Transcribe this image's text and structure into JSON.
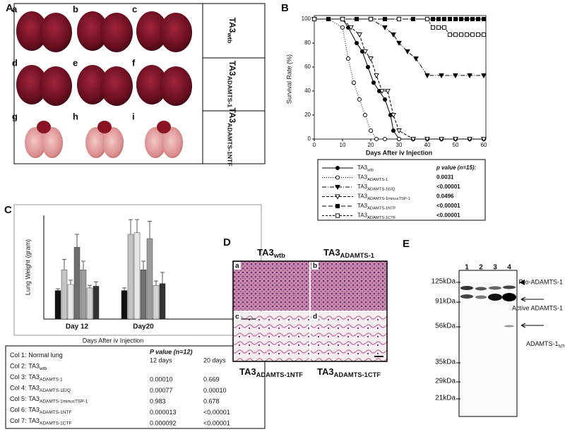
{
  "panels": {
    "a": "A",
    "b": "B",
    "c": "C",
    "d": "D",
    "e": "E"
  },
  "panel_a": {
    "images": [
      "a",
      "b",
      "c",
      "d",
      "e",
      "f",
      "g",
      "h",
      "i"
    ],
    "rows": [
      {
        "base": "TA3",
        "sub": "wtb"
      },
      {
        "base": "TA3",
        "sub": "ADAMTS-1"
      },
      {
        "base": "TA3",
        "sub": "ADAMTS-1NTF"
      }
    ]
  },
  "chart_data": [
    {
      "type": "line",
      "xlabel": "Days After iv Injection",
      "ylabel": "Survival Rate (%)",
      "xlim": [
        0,
        60
      ],
      "xticks": [
        0,
        10,
        20,
        30,
        40,
        50,
        60
      ],
      "ylim": [
        0,
        100
      ],
      "yticks": [
        0,
        20,
        40,
        60,
        80,
        100
      ],
      "legend_header": "p value (n=15):",
      "series": [
        {
          "name": {
            "base": "TA3",
            "sub": "wtb"
          },
          "color": "#000",
          "marker": "circle",
          "fill": true,
          "dash": "none",
          "x": [
            0,
            10,
            12,
            15,
            17,
            19,
            21,
            23,
            25,
            27,
            28,
            30,
            35,
            40,
            45,
            50,
            55,
            60
          ],
          "values": [
            100,
            100,
            93,
            80,
            73,
            60,
            47,
            40,
            33,
            20,
            7,
            0,
            0,
            0,
            0,
            0,
            0,
            0
          ]
        },
        {
          "name": {
            "base": "TA3",
            "sub": "ADAMTS-1"
          },
          "p_value": "0.0031",
          "color": "#000",
          "marker": "circle",
          "fill": false,
          "dash": "1,2",
          "x": [
            0,
            5,
            10,
            12,
            14,
            16,
            18,
            20,
            22,
            25,
            30,
            35,
            40,
            45,
            50,
            55,
            60
          ],
          "values": [
            100,
            100,
            93,
            67,
            47,
            33,
            20,
            7,
            0,
            0,
            0,
            0,
            0,
            0,
            0,
            0,
            0
          ]
        },
        {
          "name": {
            "base": "TA3",
            "sub": "ADAMTS-1E/Q"
          },
          "p_value": "<0.00001",
          "color": "#000",
          "marker": "triangle",
          "fill": true,
          "dash": "6,2,1,2",
          "x": [
            0,
            10,
            20,
            25,
            28,
            30,
            33,
            36,
            40,
            45,
            50,
            55,
            60
          ],
          "values": [
            100,
            100,
            100,
            93,
            87,
            80,
            73,
            67,
            53,
            53,
            53,
            53,
            53
          ]
        },
        {
          "name": {
            "base": "TA3",
            "sub": "ADAMTS-1minusTSP-1"
          },
          "p_value": "0.0496",
          "color": "#000",
          "marker": "triangle",
          "fill": false,
          "dash": "4,2",
          "x": [
            0,
            10,
            13,
            16,
            18,
            20,
            22,
            24,
            26,
            28,
            30,
            35,
            40,
            45,
            50,
            55,
            60
          ],
          "values": [
            100,
            100,
            93,
            87,
            73,
            67,
            53,
            40,
            40,
            20,
            7,
            0,
            0,
            0,
            0,
            0,
            0
          ]
        },
        {
          "name": {
            "base": "TA3",
            "sub": "ADAMTS-1NTF"
          },
          "p_value": "<0.00001",
          "color": "#000",
          "marker": "square",
          "fill": true,
          "dash": "6,3",
          "x": [
            0,
            5,
            10,
            15,
            20,
            25,
            30,
            35,
            40,
            42,
            44,
            46,
            48,
            50,
            52,
            54,
            56,
            58,
            60
          ],
          "values": [
            100,
            100,
            100,
            100,
            100,
            100,
            100,
            100,
            100,
            100,
            100,
            100,
            100,
            100,
            100,
            100,
            100,
            100,
            100
          ]
        },
        {
          "name": {
            "base": "TA3",
            "sub": "ADAMTS-1CTF"
          },
          "p_value": "<0.00001",
          "color": "#000",
          "marker": "square",
          "fill": false,
          "dash": "3,2",
          "x": [
            0,
            10,
            20,
            30,
            40,
            42,
            44,
            46,
            48,
            50,
            52,
            54,
            56,
            58,
            60
          ],
          "values": [
            100,
            100,
            100,
            100,
            100,
            93,
            93,
            93,
            87,
            87,
            87,
            87,
            87,
            87,
            87
          ]
        }
      ]
    },
    {
      "type": "bar",
      "ylabel": "Lung Weight (gram)",
      "xlabel": "Days After iv Injection",
      "categories": [
        "Day 12",
        "Day20"
      ],
      "ylim": [
        0,
        1.2
      ],
      "legend_header": "P value (n=12)",
      "legend_columns": [
        "12 days",
        "20 days"
      ],
      "series": [
        {
          "name": {
            "col": "Col 1:",
            "base": "Normal lung"
          },
          "color": "#111111",
          "values": [
            0.33,
            0.33
          ],
          "errors": [
            0.02,
            0.03
          ]
        },
        {
          "name": {
            "col": "Col 2:",
            "base": "TA3",
            "sub": "wtb"
          },
          "color": "#c4c4c4",
          "values": [
            0.57,
            0.98
          ],
          "errors": [
            0.12,
            0.17
          ]
        },
        {
          "name": {
            "col": "Col 3:",
            "base": "TA3",
            "sub": "ADAMTS-1"
          },
          "color": "#e6e6e6",
          "values": [
            0.4,
            1.0
          ],
          "errors": [
            0.05,
            0.15
          ],
          "p_values": [
            "0.00010",
            "0.669"
          ]
        },
        {
          "name": {
            "col": "Col 4:",
            "base": "TA3",
            "sub": "ADAMTS-1E/Q"
          },
          "color": "#6e6e6e",
          "values": [
            0.83,
            0.57
          ],
          "errors": [
            0.15,
            0.1
          ],
          "p_values": [
            "0.00077",
            "0.00010"
          ]
        },
        {
          "name": {
            "col": "Col 5:",
            "base": "TA3",
            "sub": "ADAMTS-1minusTSP-1"
          },
          "color": "#9c9c9c",
          "values": [
            0.57,
            0.93
          ],
          "errors": [
            0.1,
            0.2
          ],
          "p_values": [
            "0.983",
            "0.678"
          ]
        },
        {
          "name": {
            "col": "Col 6:",
            "base": "TA3",
            "sub": "ADAMTS-1NTF"
          },
          "color": "#d2d2d2",
          "values": [
            0.36,
            0.39
          ],
          "errors": [
            0.03,
            0.05
          ],
          "p_values": [
            "0.000013",
            "<0.00001"
          ]
        },
        {
          "name": {
            "col": "Col 7:",
            "base": "TA3",
            "sub": "ADAMTS-1CTF"
          },
          "color": "#333333",
          "values": [
            0.38,
            0.41
          ],
          "errors": [
            0.05,
            0.13
          ],
          "p_values": [
            "0.000092",
            "<0.00001"
          ]
        }
      ]
    }
  ],
  "panel_d": {
    "top": [
      {
        "base": "TA3",
        "sub": "wtb"
      },
      {
        "base": "TA3",
        "sub": "ADAMTS-1"
      }
    ],
    "bottom": [
      {
        "base": "TA3",
        "sub": "ADAMTS-1NTF"
      },
      {
        "base": "TA3",
        "sub": "ADAMTS-1CTF"
      }
    ],
    "images": [
      "a",
      "b",
      "c",
      "d"
    ]
  },
  "panel_e": {
    "lanes": [
      "1",
      "2",
      "3",
      "4"
    ],
    "markers": [
      "125kDa",
      "91kDa",
      "56kDa",
      "35kDa",
      "29kDa",
      "21kDa"
    ],
    "bands": [
      "Pro-ADAMTS-1",
      "Active ADAMTS-1",
      {
        "base": "ADAMTS-1",
        "sub": "NTCF"
      }
    ]
  }
}
